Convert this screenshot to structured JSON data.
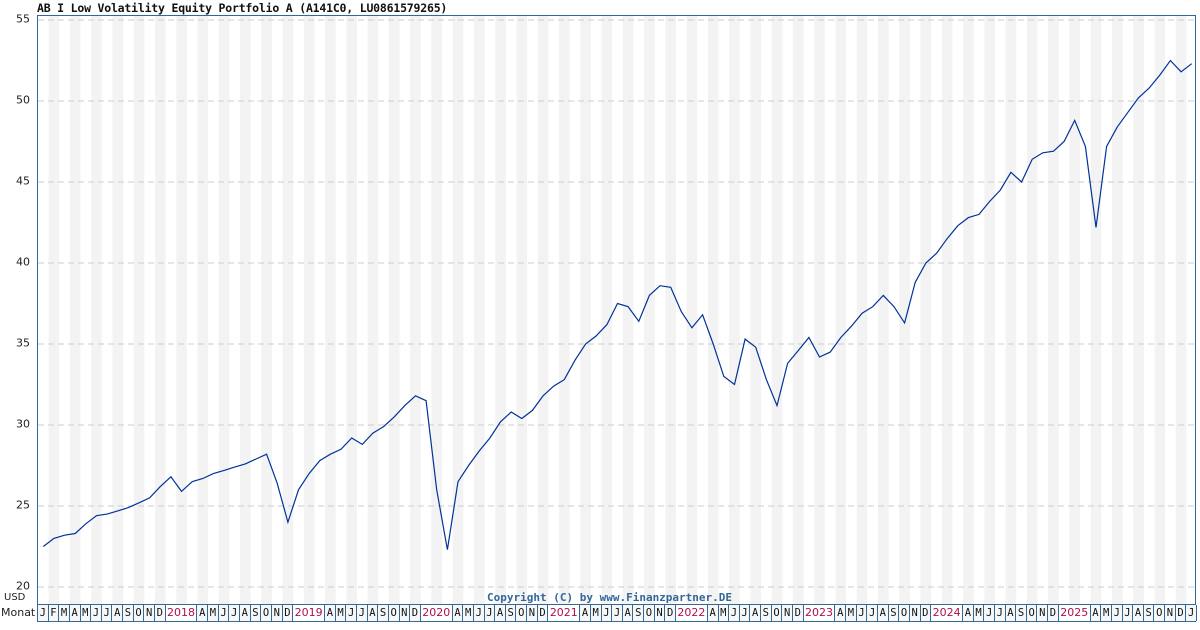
{
  "header": {
    "title": "AB I Low Volatility Equity Portfolio A (A141C0, LU0861579265)"
  },
  "axis": {
    "y_unit": "USD",
    "x_label": "Monat",
    "month_letters": [
      "J",
      "F",
      "M",
      "A",
      "M",
      "J",
      "J",
      "A",
      "S",
      "O",
      "N",
      "D"
    ],
    "start_year": 2017,
    "end": "2026-01",
    "years": [
      "2018",
      "2019",
      "2020",
      "2021",
      "2022",
      "2023",
      "2024",
      "2025"
    ]
  },
  "footer": {
    "copyright": "Copyright (C) by www.Finanzpartner.DE"
  },
  "colors": {
    "line": "#003399",
    "frame": "#336699",
    "stripe": "#f3f3f3",
    "grid": "#cccccc",
    "year": "#b0104a"
  },
  "chart_data": {
    "type": "line",
    "title": "AB I Low Volatility Equity Portfolio A (A141C0, LU0861579265)",
    "xlabel": "Monat",
    "ylabel": "USD",
    "ylim": [
      20,
      55
    ],
    "yticks": [
      20,
      25,
      30,
      35,
      40,
      45,
      50,
      55
    ],
    "grid": true,
    "x_range": [
      "2017-01",
      "2026-01"
    ],
    "series": [
      {
        "name": "AB I Low Volatility Equity Portfolio A",
        "x": [
          "2017-01",
          "2017-02",
          "2017-03",
          "2017-04",
          "2017-05",
          "2017-06",
          "2017-07",
          "2017-08",
          "2017-09",
          "2017-10",
          "2017-11",
          "2017-12",
          "2018-01",
          "2018-02",
          "2018-03",
          "2018-04",
          "2018-05",
          "2018-06",
          "2018-07",
          "2018-08",
          "2018-09",
          "2018-10",
          "2018-11",
          "2018-12",
          "2019-01",
          "2019-02",
          "2019-03",
          "2019-04",
          "2019-05",
          "2019-06",
          "2019-07",
          "2019-08",
          "2019-09",
          "2019-10",
          "2019-11",
          "2019-12",
          "2020-01",
          "2020-02",
          "2020-03",
          "2020-04",
          "2020-05",
          "2020-06",
          "2020-07",
          "2020-08",
          "2020-09",
          "2020-10",
          "2020-11",
          "2020-12",
          "2021-01",
          "2021-02",
          "2021-03",
          "2021-04",
          "2021-05",
          "2021-06",
          "2021-07",
          "2021-08",
          "2021-09",
          "2021-10",
          "2021-11",
          "2021-12",
          "2022-01",
          "2022-02",
          "2022-03",
          "2022-04",
          "2022-05",
          "2022-06",
          "2022-07",
          "2022-08",
          "2022-09",
          "2022-10",
          "2022-11",
          "2022-12",
          "2023-01",
          "2023-02",
          "2023-03",
          "2023-04",
          "2023-05",
          "2023-06",
          "2023-07",
          "2023-08",
          "2023-09",
          "2023-10",
          "2023-11",
          "2023-12",
          "2024-01",
          "2024-02",
          "2024-03",
          "2024-04",
          "2024-05",
          "2024-06",
          "2024-07",
          "2024-08",
          "2024-09",
          "2024-10",
          "2024-11",
          "2024-12",
          "2025-01",
          "2025-02",
          "2025-03",
          "2025-04",
          "2025-05",
          "2025-06",
          "2025-07",
          "2025-08",
          "2025-09",
          "2025-10",
          "2025-11",
          "2025-12",
          "2026-01"
        ],
        "values": [
          22.5,
          23.0,
          23.2,
          23.3,
          23.9,
          24.4,
          24.5,
          24.7,
          24.9,
          25.2,
          25.5,
          26.2,
          26.8,
          25.9,
          26.5,
          26.7,
          27.0,
          27.2,
          27.4,
          27.6,
          27.9,
          28.2,
          26.4,
          24.0,
          26.0,
          27.0,
          27.8,
          28.2,
          28.5,
          29.2,
          28.8,
          29.5,
          29.9,
          30.5,
          31.2,
          31.8,
          31.5,
          26.0,
          22.3,
          26.5,
          27.5,
          28.4,
          29.2,
          30.2,
          30.8,
          30.4,
          30.9,
          31.8,
          32.4,
          32.8,
          34.0,
          35.0,
          35.5,
          36.2,
          37.5,
          37.3,
          36.4,
          38.0,
          38.6,
          38.5,
          37.0,
          36.0,
          36.8,
          35.0,
          33.0,
          32.5,
          35.3,
          34.8,
          32.8,
          31.2,
          33.8,
          34.6,
          35.4,
          34.2,
          34.5,
          35.4,
          36.1,
          36.9,
          37.3,
          38.0,
          37.3,
          36.3,
          38.8,
          40.0,
          40.6,
          41.5,
          42.3,
          42.8,
          43.0,
          43.8,
          44.5,
          45.6,
          45.0,
          46.4,
          46.8,
          46.9,
          47.5,
          48.8,
          47.2,
          42.2,
          47.2,
          48.4,
          49.3,
          50.2,
          50.8,
          51.6,
          52.5,
          51.8,
          52.3
        ]
      }
    ]
  }
}
